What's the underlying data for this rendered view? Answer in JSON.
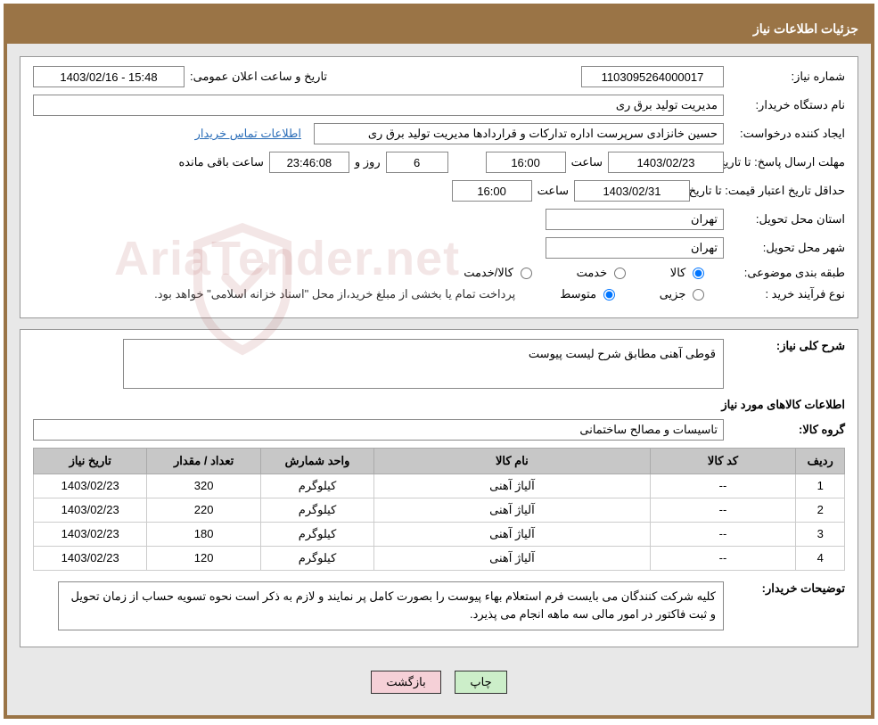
{
  "header": {
    "title": "جزئیات اطلاعات نیاز"
  },
  "form": {
    "need_number_label": "شماره نیاز:",
    "need_number": "1103095264000017",
    "announce_label": "تاریخ و ساعت اعلان عمومی:",
    "announce_value": "1403/02/16 - 15:48",
    "buyer_org_label": "نام دستگاه خریدار:",
    "buyer_org": "مدیریت تولید برق ری",
    "requester_label": "ایجاد کننده درخواست:",
    "requester": "حسین خانزادی سرپرست اداره تدارکات و قراردادها مدیریت تولید برق ری",
    "contact_link": "اطلاعات تماس خریدار",
    "reply_deadline_label": "مهلت ارسال پاسخ: تا تاریخ:",
    "reply_deadline_date": "1403/02/23",
    "time_label": "ساعت",
    "reply_time": "16:00",
    "days_remaining": "6",
    "days_and": "روز و",
    "time_remaining": "23:46:08",
    "remaining_suffix": "ساعت باقی مانده",
    "price_valid_label": "حداقل تاریخ اعتبار قیمت: تا تاریخ:",
    "price_valid_date": "1403/02/31",
    "price_valid_time": "16:00",
    "province_label": "استان محل تحویل:",
    "province": "تهران",
    "city_label": "شهر محل تحویل:",
    "city": "تهران",
    "category_label": "طبقه بندی موضوعی:",
    "category_opts": {
      "kala": "کالا",
      "khadamat": "خدمت",
      "kalakhadamat": "کالا/خدمت"
    },
    "process_label": "نوع فرآیند خرید :",
    "process_opts": {
      "jozi": "جزیی",
      "motavaset": "متوسط"
    },
    "process_note": "پرداخت تمام یا بخشی از مبلغ خرید،از محل \"اسناد خزانه اسلامی\" خواهد بود."
  },
  "need": {
    "summary_label": "شرح کلی نیاز:",
    "summary": "قوطی آهنی مطابق شرح لیست پیوست",
    "items_title": "اطلاعات کالاهای مورد نیاز",
    "group_label": "گروه کالا:",
    "group": "تاسیسات و مصالح ساختمانی"
  },
  "table": {
    "columns": [
      "ردیف",
      "کد کالا",
      "نام کالا",
      "واحد شمارش",
      "تعداد / مقدار",
      "تاریخ نیاز"
    ],
    "col_widths": [
      "6%",
      "18%",
      "34%",
      "14%",
      "14%",
      "14%"
    ],
    "rows": [
      [
        "1",
        "--",
        "آلیاژ آهنی",
        "کیلوگرم",
        "320",
        "1403/02/23"
      ],
      [
        "2",
        "--",
        "آلیاژ آهنی",
        "کیلوگرم",
        "220",
        "1403/02/23"
      ],
      [
        "3",
        "--",
        "آلیاژ آهنی",
        "کیلوگرم",
        "180",
        "1403/02/23"
      ],
      [
        "4",
        "--",
        "آلیاژ آهنی",
        "کیلوگرم",
        "120",
        "1403/02/23"
      ]
    ]
  },
  "desc": {
    "label": "توضیحات خریدار:",
    "text": "کلیه شرکت کنندگان می بایست فرم استعلام بهاء پیوست را بصورت کامل پر نمایند و لازم به ذکر است نحوه تسویه حساب از زمان تحویل و ثبت فاکتور در امور مالی سه ماهه انجام می پذیرد."
  },
  "buttons": {
    "print": "چاپ",
    "back": "بازگشت"
  },
  "watermark": "AriaTender.net",
  "colors": {
    "brand": "#9a7446",
    "panel_bg": "#e8e8e8",
    "th_bg": "#c7c7c7",
    "link": "#2a6db8",
    "btn_print": "#cceec9",
    "btn_back": "#f5d0d7",
    "wm": "#a94545"
  }
}
